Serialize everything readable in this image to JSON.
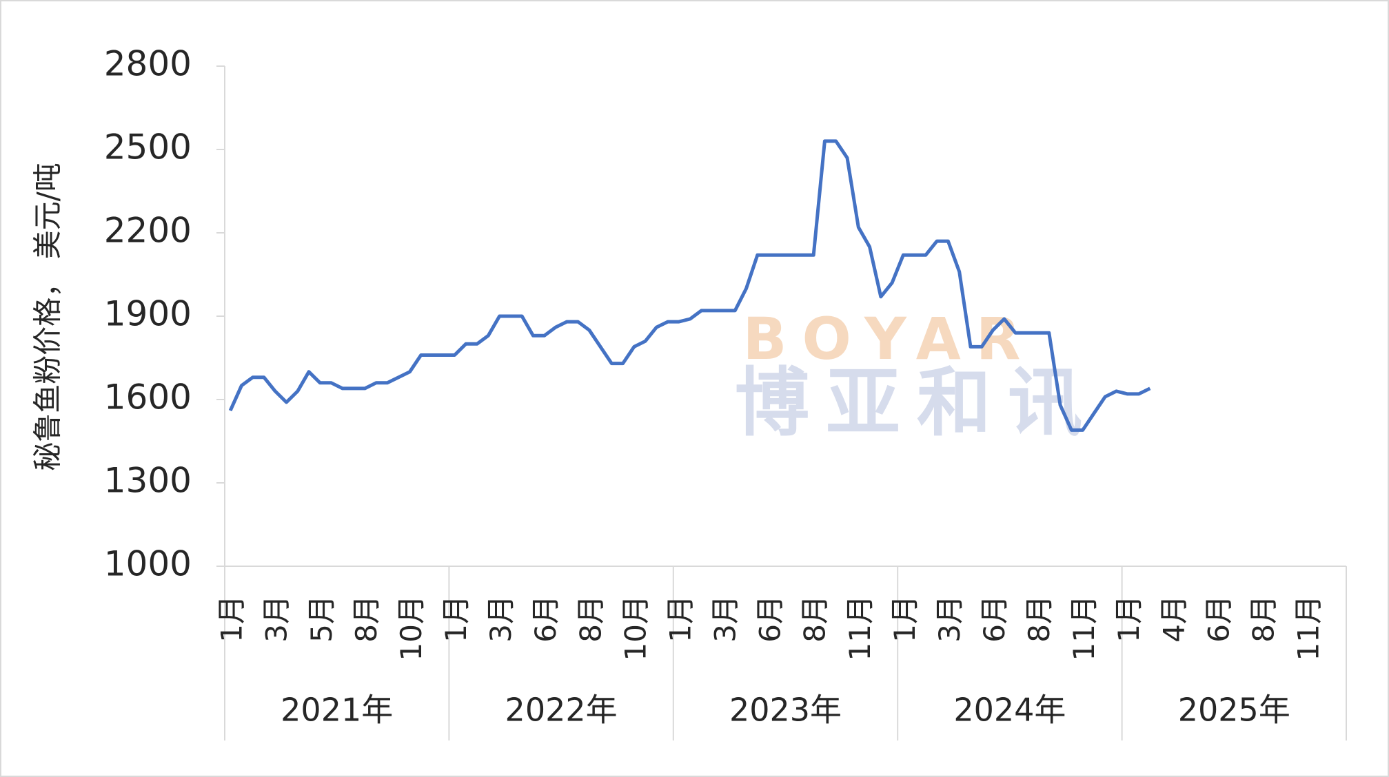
{
  "chart_data": {
    "type": "line",
    "y_label": "秘鲁鱼粉价格， 美元/吨",
    "watermark": [
      "BOYAR",
      "博亚和讯"
    ],
    "groups": [
      "2021年",
      "2022年",
      "2023年",
      "2024年",
      "2025年"
    ],
    "categories": [
      "1月",
      null,
      null,
      null,
      "3月",
      null,
      null,
      null,
      "5月",
      null,
      null,
      null,
      "8月",
      null,
      null,
      null,
      "10月",
      null,
      null,
      null,
      "1月",
      null,
      null,
      null,
      "3月",
      null,
      null,
      null,
      "6月",
      null,
      null,
      null,
      "8月",
      null,
      null,
      null,
      "10月",
      null,
      null,
      null,
      "1月",
      null,
      null,
      null,
      "3月",
      null,
      null,
      null,
      "6月",
      null,
      null,
      null,
      "8月",
      null,
      null,
      null,
      "11月",
      null,
      null,
      null,
      "1月",
      null,
      null,
      null,
      "3月",
      null,
      null,
      null,
      "6月",
      null,
      null,
      null,
      "8月",
      null,
      null,
      null,
      "11月",
      null,
      null,
      null,
      "1月",
      null,
      null,
      null,
      "4月",
      null,
      null,
      null,
      "6月",
      null,
      null,
      null,
      "8月",
      null,
      null,
      null,
      "11月",
      null,
      null,
      null
    ],
    "series": [
      {
        "color": "#4472c4",
        "values": [
          1560,
          1650,
          1680,
          1680,
          1630,
          1590,
          1630,
          1700,
          1660,
          1660,
          1640,
          1640,
          1640,
          1660,
          1660,
          1680,
          1700,
          1760,
          1760,
          1760,
          1760,
          1800,
          1800,
          1830,
          1900,
          1900,
          1900,
          1830,
          1830,
          1860,
          1880,
          1880,
          1850,
          1790,
          1730,
          1730,
          1790,
          1810,
          1860,
          1880,
          1880,
          1890,
          1920,
          1920,
          1920,
          1920,
          2000,
          2120,
          2120,
          2120,
          2120,
          2120,
          2120,
          2530,
          2530,
          2470,
          2220,
          2150,
          1970,
          2020,
          2120,
          2120,
          2120,
          2170,
          2170,
          2060,
          1790,
          1790,
          1850,
          1890,
          1840,
          1840,
          1840,
          1840,
          1580,
          1490,
          1490,
          1550,
          1610,
          1630,
          1620,
          1620,
          1640,
          null,
          null,
          null,
          null,
          null,
          null,
          null,
          null,
          null,
          null,
          null,
          null,
          null,
          null,
          null,
          null,
          null
        ]
      }
    ],
    "ylim": [
      1000,
      2800
    ],
    "yticks": [
      1000,
      1300,
      1600,
      1900,
      2200,
      2500,
      2800
    ]
  }
}
